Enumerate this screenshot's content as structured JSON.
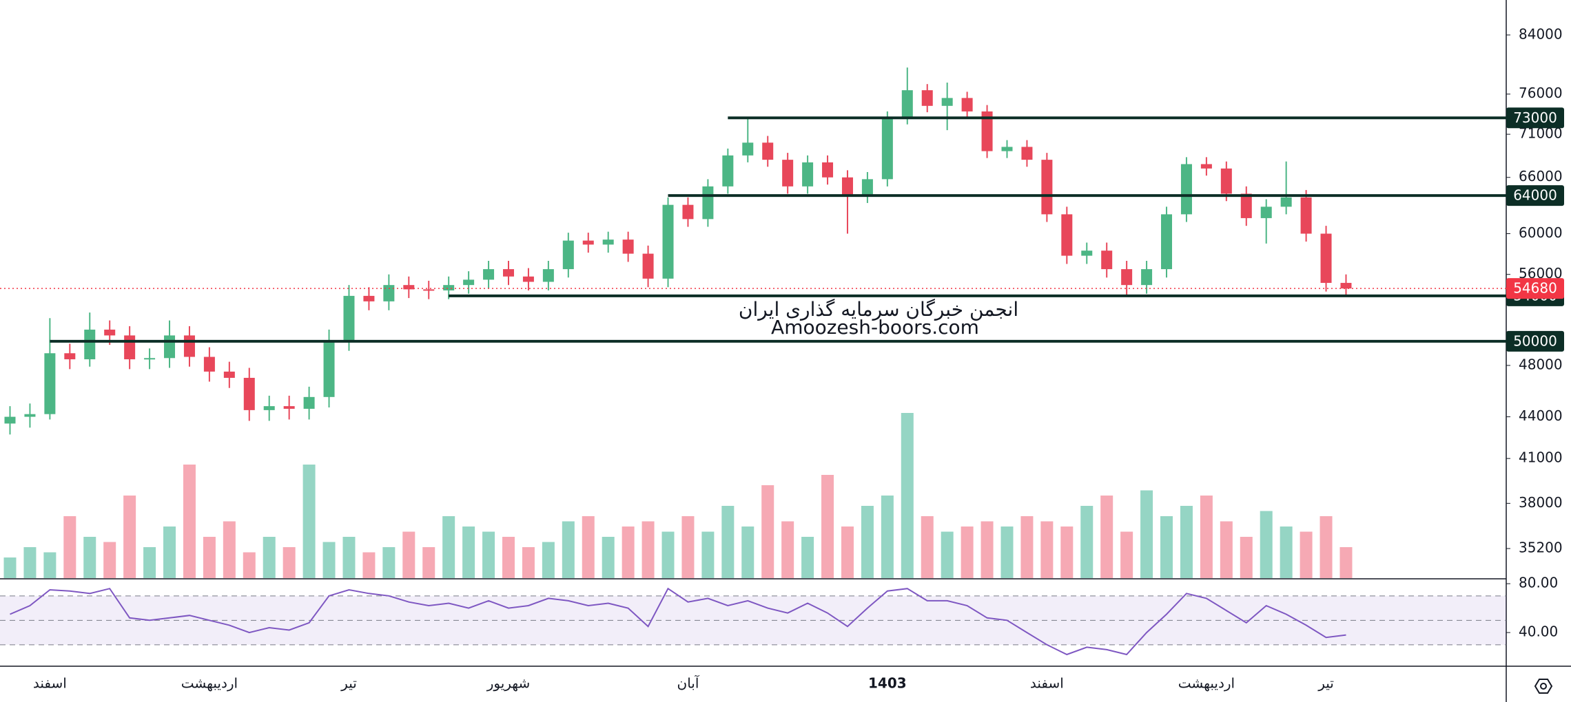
{
  "chart_data": {
    "type": "candlestick",
    "watermark": [
      "انجمن خبرگان سرمایه گذاری ایران",
      "Amoozesh-boors.com"
    ],
    "categories": [
      null,
      null,
      "اسفند",
      null,
      null,
      null,
      null,
      null,
      null,
      null,
      "اردیبهشت",
      null,
      null,
      null,
      null,
      null,
      null,
      "تیر",
      null,
      null,
      null,
      null,
      null,
      null,
      null,
      "شهریور",
      null,
      null,
      null,
      null,
      null,
      null,
      null,
      null,
      "آبان",
      null,
      null,
      null,
      null,
      null,
      null,
      null,
      null,
      null,
      "1403",
      null,
      null,
      null,
      null,
      null,
      null,
      null,
      "اسفند",
      null,
      null,
      null,
      null,
      null,
      null,
      null,
      "اردیبهشت",
      null,
      null,
      null,
      null,
      null,
      "تیر",
      null
    ],
    "bold_categories": [
      "1403"
    ],
    "open": [
      43500,
      44000,
      44200,
      49000,
      48500,
      51000,
      50500,
      48500,
      48600,
      50500,
      48700,
      47500,
      47000,
      44500,
      44800,
      44600,
      45500,
      50000,
      54000,
      53500,
      55000,
      54600,
      54500,
      55000,
      55500,
      56500,
      55800,
      55300,
      56500,
      59300,
      58900,
      59400,
      58000,
      55600,
      63000,
      61500,
      65000,
      68500,
      70000,
      68000,
      65000,
      67700,
      66000,
      64000,
      65800,
      73000,
      76500,
      74500,
      75500,
      73800,
      69000,
      69500,
      68000,
      62000,
      57800,
      58300,
      56500,
      55000,
      56500,
      62000,
      67500,
      67000,
      64200,
      61600,
      62800,
      63800,
      60000,
      55200
    ],
    "high": [
      44800,
      45000,
      52000,
      49800,
      52500,
      51800,
      51300,
      49400,
      51800,
      51300,
      49500,
      48300,
      47800,
      45600,
      45600,
      46300,
      51000,
      55000,
      54800,
      56000,
      55800,
      55400,
      55800,
      56300,
      57300,
      57300,
      56600,
      57300,
      60100,
      60100,
      60200,
      60200,
      58800,
      63800,
      63800,
      65800,
      69300,
      73000,
      70800,
      68800,
      68500,
      68500,
      66800,
      66600,
      73800,
      79500,
      77300,
      77500,
      76300,
      74600,
      70300,
      70300,
      68800,
      62800,
      59100,
      59100,
      57300,
      57300,
      62800,
      68300,
      68300,
      67800,
      65000,
      63600,
      67800,
      64600,
      60800,
      56000
    ],
    "low": [
      42700,
      43200,
      43800,
      47700,
      47900,
      49700,
      47700,
      47700,
      47800,
      47900,
      46700,
      46200,
      43700,
      43700,
      43800,
      43800,
      44700,
      49200,
      52700,
      52700,
      53800,
      53700,
      53700,
      54200,
      54700,
      55000,
      54500,
      54500,
      55700,
      58100,
      58100,
      57200,
      54800,
      54800,
      60700,
      60700,
      64200,
      67700,
      67200,
      64200,
      64200,
      65200,
      60000,
      63200,
      65000,
      72200,
      73700,
      71500,
      73000,
      68200,
      68200,
      67200,
      61200,
      57000,
      57000,
      55700,
      54000,
      54200,
      55700,
      61200,
      66200,
      63400,
      60800,
      59000,
      62000,
      59200,
      54400,
      54000
    ],
    "close": [
      44000,
      44200,
      49000,
      48500,
      51000,
      50500,
      48500,
      48600,
      50500,
      48700,
      47500,
      47000,
      44500,
      44800,
      44600,
      45500,
      50000,
      54000,
      53500,
      55000,
      54600,
      54500,
      55000,
      55500,
      56500,
      55800,
      55300,
      56500,
      59300,
      58900,
      59400,
      58000,
      55600,
      63000,
      61500,
      65000,
      68500,
      70000,
      68000,
      65000,
      67700,
      66000,
      64000,
      65800,
      73000,
      76500,
      74500,
      75500,
      73800,
      69000,
      69500,
      68000,
      62000,
      57800,
      58300,
      56500,
      55000,
      56500,
      62000,
      67500,
      67000,
      64200,
      61600,
      62800,
      63800,
      60000,
      55200,
      54680
    ],
    "volume": [
      20,
      30,
      25,
      60,
      40,
      35,
      80,
      30,
      50,
      110,
      40,
      55,
      25,
      40,
      30,
      110,
      35,
      40,
      25,
      30,
      45,
      30,
      60,
      50,
      45,
      40,
      30,
      35,
      55,
      60,
      40,
      50,
      55,
      45,
      60,
      45,
      70,
      50,
      90,
      55,
      40,
      100,
      50,
      70,
      80,
      160,
      60,
      45,
      50,
      55,
      50,
      60,
      55,
      50,
      70,
      80,
      45,
      85,
      60,
      70,
      80,
      55,
      40,
      65,
      50,
      45,
      60,
      30
    ],
    "rsi": [
      55,
      62,
      75,
      74,
      72,
      76,
      52,
      50,
      52,
      54,
      50,
      46,
      40,
      44,
      42,
      48,
      70,
      75,
      72,
      70,
      65,
      62,
      64,
      60,
      66,
      60,
      62,
      68,
      66,
      62,
      64,
      60,
      45,
      76,
      65,
      68,
      62,
      66,
      60,
      56,
      64,
      56,
      45,
      60,
      74,
      76,
      66,
      66,
      62,
      52,
      50,
      40,
      30,
      22,
      28,
      26,
      22,
      40,
      55,
      72,
      68,
      58,
      48,
      62,
      55,
      46,
      36,
      38
    ],
    "log_scale": true,
    "ylim": [
      33480,
      89130
    ],
    "yticks": [
      84000,
      76000,
      71000,
      66000,
      60000,
      56000,
      48000,
      44000,
      41000,
      38000,
      35200
    ],
    "levels": [
      {
        "value": 73000,
        "from": 36
      },
      {
        "value": 64000,
        "from": 33
      },
      {
        "value": 54000,
        "from": 22
      },
      {
        "value": 50000,
        "from": 2
      }
    ],
    "current_price": 54680,
    "rsi_ylim": [
      13,
      84
    ],
    "rsi_yticks": [
      {
        "value": 80,
        "label": "80.00"
      },
      {
        "value": 40,
        "label": "40.00"
      }
    ],
    "rsi_bands": [
      30,
      50,
      70
    ],
    "up_color": "#4cb685",
    "down_color": "#e8475a",
    "up_volume_color": "#95d5c4",
    "down_volume_color": "#f6a9b4",
    "rsi_color": "#7e57c2",
    "level_color": "#0c2e26",
    "current_color": "#f23645"
  }
}
